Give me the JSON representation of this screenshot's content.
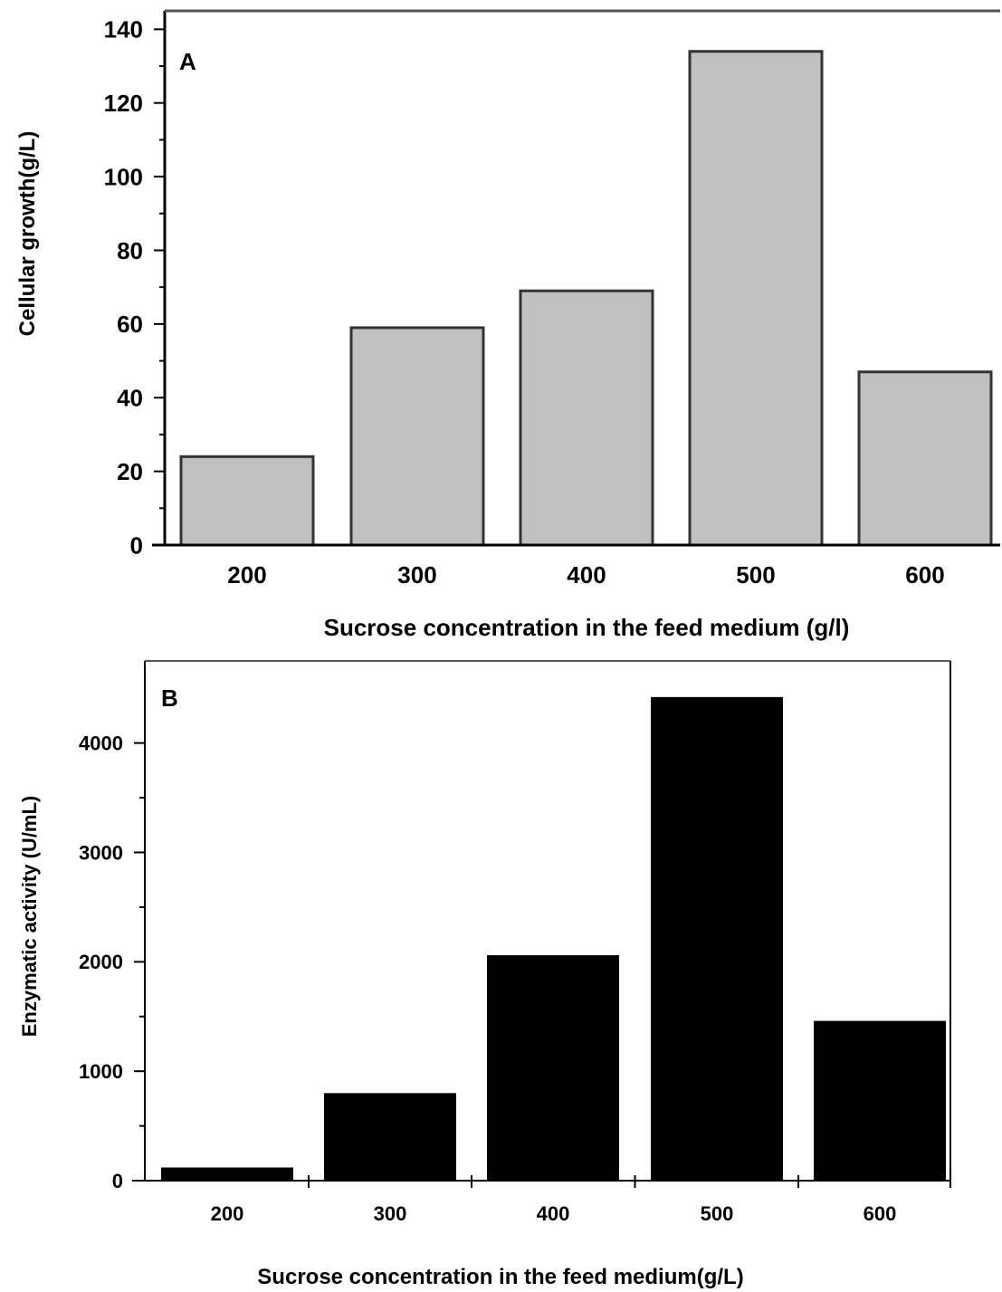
{
  "chart_data": [
    {
      "panel": "A",
      "type": "bar",
      "categories": [
        "200",
        "300",
        "400",
        "500",
        "600"
      ],
      "values": [
        24,
        59,
        69,
        134,
        47
      ],
      "xlabel": "Sucrose concentration in  the feed medium  (g/l)",
      "ylabel": "Cellular growth(g/L)",
      "ylim": [
        0,
        145
      ],
      "yticks": [
        0,
        20,
        40,
        60,
        80,
        100,
        120,
        140
      ],
      "ytick_labels": [
        "0",
        "20",
        "40",
        "60",
        "80",
        "100",
        "120",
        "140"
      ],
      "bar_color": "#c0c0c0",
      "bar_edge_color": "#333333",
      "grid": false,
      "legend": "none"
    },
    {
      "panel": "B",
      "type": "bar",
      "categories": [
        "200",
        "300",
        "400",
        "500",
        "600"
      ],
      "values": [
        120,
        800,
        2060,
        4420,
        1460
      ],
      "xlabel": "Sucrose concentration in the feed medium(g/L)",
      "ylabel": "Enzymatic activity (U/mL)",
      "ylim": [
        0,
        4750
      ],
      "yticks": [
        0,
        1000,
        2000,
        3000,
        4000
      ],
      "ytick_labels": [
        "0",
        "1000",
        "2000",
        "3000",
        "4000"
      ],
      "bar_color": "#000000",
      "grid": false,
      "legend": "none"
    }
  ]
}
